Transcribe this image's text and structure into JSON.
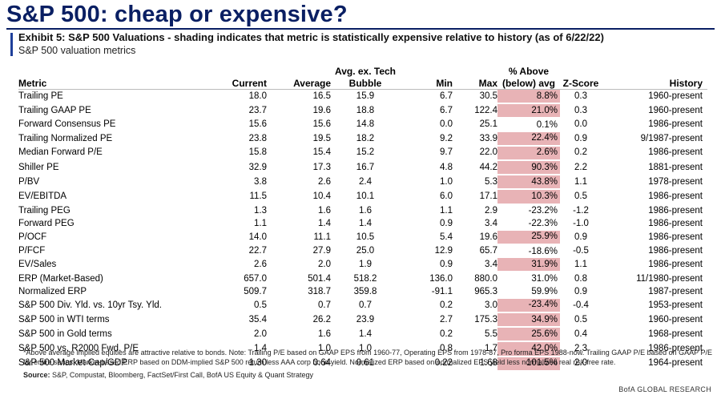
{
  "title": "S&P 500: cheap or expensive?",
  "exhibit": "Exhibit 5: S&P 500 Valuations - shading indicates that metric is statistically expensive relative to history (as of 6/22/22)",
  "subtitle": "S&P 500 valuation metrics",
  "headers": {
    "metric": "Metric",
    "current": "Current",
    "average": "Average",
    "avg_ex_tech_1": "Avg. ex. Tech",
    "avg_ex_tech_2": "Bubble",
    "min": "Min",
    "max": "Max",
    "pct_above_1": "% Above",
    "pct_above_2": "(below) avg",
    "zscore": "Z-Score",
    "history": "History"
  },
  "shade_color": "#e8b3b6",
  "title_color": "#0a1f63",
  "rows": [
    {
      "metric": "Trailing PE",
      "current": "18.0",
      "average": "16.5",
      "avg_ex_tech": "15.9",
      "min": "6.7",
      "max": "30.5",
      "pct": "8.8%",
      "z": "0.3",
      "history": "1960-present",
      "shaded": true
    },
    {
      "metric": "Trailing GAAP PE",
      "current": "23.7",
      "average": "19.6",
      "avg_ex_tech": "18.8",
      "min": "6.7",
      "max": "122.4",
      "pct": "21.0%",
      "z": "0.3",
      "history": "1960-present",
      "shaded": true
    },
    {
      "metric": "Forward Consensus PE",
      "current": "15.6",
      "average": "15.6",
      "avg_ex_tech": "14.8",
      "min": "0.0",
      "max": "25.1",
      "pct": "0.1%",
      "z": "0.0",
      "history": "1986-present",
      "shaded": false
    },
    {
      "metric": "Trailing Normalized PE",
      "current": "23.8",
      "average": "19.5",
      "avg_ex_tech": "18.2",
      "min": "9.2",
      "max": "33.9",
      "pct": "22.4%",
      "z": "0.9",
      "history": "9/1987-present",
      "shaded": true
    },
    {
      "metric": "Median Forward P/E",
      "current": "15.8",
      "average": "15.4",
      "avg_ex_tech": "15.2",
      "min": "9.7",
      "max": "22.0",
      "pct": "2.6%",
      "z": "0.2",
      "history": "1986-present",
      "shaded": true
    },
    {
      "metric": "Shiller PE",
      "current": "32.9",
      "average": "17.3",
      "avg_ex_tech": "16.7",
      "min": "4.8",
      "max": "44.2",
      "pct": "90.3%",
      "z": "2.2",
      "history": "1881-present",
      "shaded": true
    },
    {
      "metric": "P/BV",
      "current": "3.8",
      "average": "2.6",
      "avg_ex_tech": "2.4",
      "min": "1.0",
      "max": "5.3",
      "pct": "43.8%",
      "z": "1.1",
      "history": "1978-present",
      "shaded": true
    },
    {
      "metric": "EV/EBITDA",
      "current": "11.5",
      "average": "10.4",
      "avg_ex_tech": "10.1",
      "min": "6.0",
      "max": "17.1",
      "pct": "10.3%",
      "z": "0.5",
      "history": "1986-present",
      "shaded": true
    },
    {
      "metric": "Trailing PEG",
      "current": "1.3",
      "average": "1.6",
      "avg_ex_tech": "1.6",
      "min": "1.1",
      "max": "2.9",
      "pct": "-23.2%",
      "z": "-1.2",
      "history": "1986-present",
      "shaded": false
    },
    {
      "metric": "Forward PEG",
      "current": "1.1",
      "average": "1.4",
      "avg_ex_tech": "1.4",
      "min": "0.9",
      "max": "3.4",
      "pct": "-22.3%",
      "z": "-1.0",
      "history": "1986-present",
      "shaded": false
    },
    {
      "metric": "P/OCF",
      "current": "14.0",
      "average": "11.1",
      "avg_ex_tech": "10.5",
      "min": "5.4",
      "max": "19.6",
      "pct": "25.9%",
      "z": "0.9",
      "history": "1986-present",
      "shaded": true
    },
    {
      "metric": "P/FCF",
      "current": "22.7",
      "average": "27.9",
      "avg_ex_tech": "25.0",
      "min": "12.9",
      "max": "65.7",
      "pct": "-18.6%",
      "z": "-0.5",
      "history": "1986-present",
      "shaded": false
    },
    {
      "metric": "EV/Sales",
      "current": "2.6",
      "average": "2.0",
      "avg_ex_tech": "1.9",
      "min": "0.9",
      "max": "3.4",
      "pct": "31.9%",
      "z": "1.1",
      "history": "1986-present",
      "shaded": true
    },
    {
      "metric": "ERP (Market-Based)",
      "current": "657.0",
      "average": "501.4",
      "avg_ex_tech": "518.2",
      "min": "136.0",
      "max": "880.0",
      "pct": "31.0%",
      "z": "0.8",
      "history": "11/1980-present",
      "shaded": false
    },
    {
      "metric": "Normalized ERP",
      "current": "509.7",
      "average": "318.7",
      "avg_ex_tech": "359.8",
      "min": "-91.1",
      "max": "965.3",
      "pct": "59.9%",
      "z": "0.9",
      "history": "1987-present",
      "shaded": false
    },
    {
      "metric": "S&P 500 Div. Yld. vs. 10yr Tsy. Yld.",
      "current": "0.5",
      "average": "0.7",
      "avg_ex_tech": "0.7",
      "min": "0.2",
      "max": "3.0",
      "pct": "-23.4%",
      "z": "-0.4",
      "history": "1953-present",
      "shaded": true
    },
    {
      "metric": "S&P 500 in WTI terms",
      "current": "35.4",
      "average": "26.2",
      "avg_ex_tech": "23.9",
      "min": "2.7",
      "max": "175.3",
      "pct": "34.9%",
      "z": "0.5",
      "history": "1960-present",
      "shaded": true
    },
    {
      "metric": "S&P 500 in Gold terms",
      "current": "2.0",
      "average": "1.6",
      "avg_ex_tech": "1.4",
      "min": "0.2",
      "max": "5.5",
      "pct": "25.6%",
      "z": "0.4",
      "history": "1968-present",
      "shaded": true
    },
    {
      "metric": "S&P 500 vs. R2000 Fwd. P/E",
      "current": "1.4",
      "average": "1.0",
      "avg_ex_tech": "1.0",
      "min": "0.8",
      "max": "1.7",
      "pct": "42.0%",
      "z": "2.3",
      "history": "1986-present",
      "shaded": true
    },
    {
      "metric": "S&P 500 Market Cap/GDP",
      "current": "1.30",
      "average": "0.64",
      "avg_ex_tech": "0.61",
      "min": "0.22",
      "max": "1.68",
      "pct": "101.5%",
      "z": "2.0",
      "history": "1964-present",
      "shaded": true
    }
  ],
  "footnote": "*Above average implied equities are attractive relative to bonds.  Note: Trailing P/E based on GAAP EPS from 1960-77, Operating EPS from 1978-87, Pro forma EPS 1988-now. Trailing GAAP P/E based on GAAP P/E for entire series. Market-based ERP based on DDM-implied S&P 500 return less AAA corp bond yield. Normalized ERP based on normalized EPS yield less normalized real risk-free rate.",
  "source_label": "Source:",
  "source_text": " S&P, Compustat, Bloomberg, FactSet/First Call, BofA US Equity & Quant Strategy",
  "brand": "BofA GLOBAL RESEARCH"
}
